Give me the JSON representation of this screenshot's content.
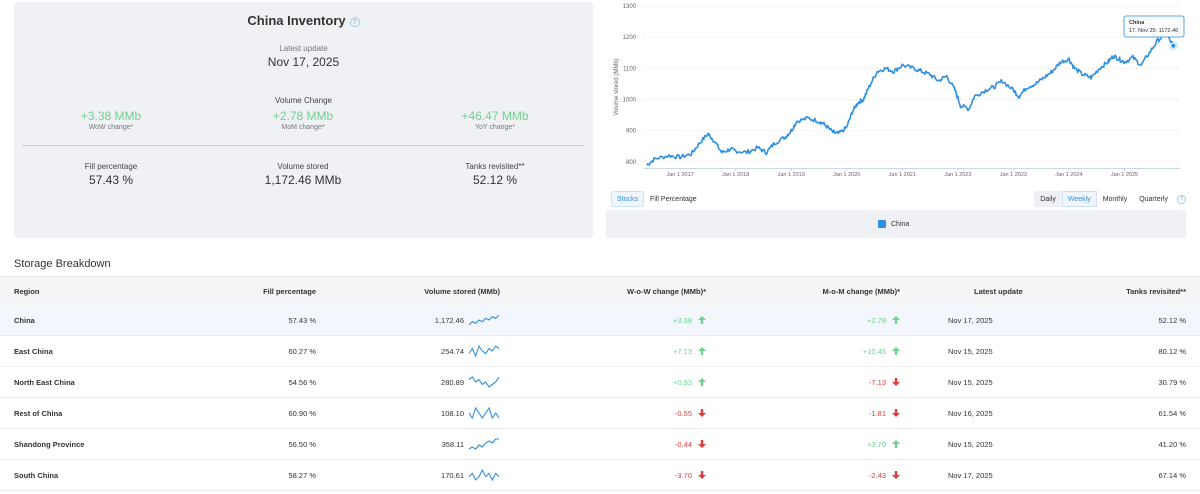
{
  "summary": {
    "title": "China Inventory",
    "help": "?",
    "latest_update_label": "Latest update",
    "latest_update_value": "Nov 17, 2025",
    "volume_change_label": "Volume Change",
    "wow_value": "+3.38 MMb",
    "wow_label": "WoW change*",
    "mom_value": "+2.78 MMb",
    "mom_label": "MoM change*",
    "yoy_value": "+46.47 MMb",
    "yoy_label": "YoY change*",
    "fill_label": "Fill percentage",
    "fill_value": "57.43 %",
    "volume_label": "Volume stored",
    "volume_value": "1,172.46 MMb",
    "tanks_label": "Tanks revisited**",
    "tanks_value": "52.12 %"
  },
  "chart_data": {
    "type": "line",
    "ylabel": "Volume stored (MMb)",
    "ylim": [
      780,
      1300
    ],
    "y_ticks": [
      "800",
      "900",
      "1000",
      "1100",
      "1200",
      "1300"
    ],
    "x_ticks": [
      "Jan 1 2017",
      "Jan 1 2018",
      "Jan 1 2019",
      "Jan 1 2020",
      "Jan 1 2021",
      "Jan 1 2022",
      "Jan 1 2023",
      "Jan 1 2024",
      "Jan 1 2025"
    ],
    "x_tick_years": [
      2017,
      2018,
      2019,
      2020,
      2021,
      2022,
      2023,
      2024,
      2025
    ],
    "xlim": [
      2016.35,
      2026.0
    ],
    "series": [
      {
        "name": "China",
        "x": [
          2016.4,
          2016.55,
          2016.8,
          2017.0,
          2017.2,
          2017.35,
          2017.5,
          2017.6,
          2017.75,
          2017.9,
          2018.0,
          2018.2,
          2018.4,
          2018.55,
          2018.7,
          2018.9,
          2019.0,
          2019.1,
          2019.3,
          2019.5,
          2019.6,
          2019.75,
          2019.85,
          2020.0,
          2020.1,
          2020.2,
          2020.3,
          2020.4,
          2020.55,
          2020.7,
          2020.85,
          2021.0,
          2021.2,
          2021.35,
          2021.5,
          2021.65,
          2021.8,
          2021.95,
          2022.05,
          2022.2,
          2022.3,
          2022.5,
          2022.65,
          2022.8,
          2023.0,
          2023.1,
          2023.25,
          2023.4,
          2023.55,
          2023.7,
          2023.85,
          2024.0,
          2024.1,
          2024.25,
          2024.4,
          2024.55,
          2024.7,
          2024.8,
          2024.9,
          2025.0,
          2025.15,
          2025.3,
          2025.45,
          2025.6,
          2025.75,
          2025.88
        ],
        "values": [
          790,
          810,
          820,
          815,
          825,
          860,
          890,
          870,
          830,
          840,
          835,
          830,
          845,
          830,
          860,
          880,
          900,
          930,
          940,
          930,
          920,
          895,
          890,
          910,
          960,
          990,
          1000,
          1040,
          1090,
          1100,
          1090,
          1110,
          1100,
          1090,
          1080,
          1060,
          1075,
          1030,
          980,
          970,
          1010,
          1030,
          1040,
          1060,
          1030,
          1010,
          1040,
          1050,
          1070,
          1090,
          1120,
          1130,
          1100,
          1080,
          1070,
          1100,
          1120,
          1140,
          1130,
          1120,
          1135,
          1110,
          1150,
          1190,
          1210,
          1172.46
        ]
      }
    ],
    "tooltip": {
      "series": "China",
      "text": "17. Nov 25: 1172.46",
      "x": 2025.88,
      "y": 1172.46
    },
    "legend": [
      "China"
    ],
    "color": "#2e8fe0"
  },
  "chart_controls": {
    "tabs": [
      "Stocks",
      "Fill Percentage"
    ],
    "active_tab": "Stocks",
    "frequencies": [
      "Daily",
      "Weekly",
      "Monthly",
      "Quarterly"
    ],
    "active_frequency": "Weekly",
    "help": "?"
  },
  "storage": {
    "title": "Storage Breakdown",
    "columns": [
      "Region",
      "Fill percentage",
      "Volume stored (MMb)",
      "W-o-W change (MMb)*",
      "M-o-M change (MMb)*",
      "Latest update",
      "Tanks revisited**"
    ],
    "rows": [
      {
        "region": "China",
        "fill": "57.43 %",
        "volume": "1,172.46",
        "wow": "+3.38",
        "wow_dir": "up",
        "mom": "+2.78",
        "mom_dir": "up",
        "date": "Nov 17, 2025",
        "tanks": "52.12 %",
        "spark": [
          3,
          5,
          4,
          6,
          5,
          7,
          6,
          8,
          7,
          9
        ]
      },
      {
        "region": "East China",
        "fill": "60.27 %",
        "volume": "254.74",
        "wow": "+7.13",
        "wow_dir": "up",
        "mom": "+10.45",
        "mom_dir": "up",
        "date": "Nov 15, 2025",
        "tanks": "80.12 %",
        "spark": [
          5,
          7,
          4,
          8,
          6,
          5,
          7,
          6,
          8,
          7
        ]
      },
      {
        "region": "North East China",
        "fill": "54.56 %",
        "volume": "280.89",
        "wow": "+0.93",
        "wow_dir": "up",
        "mom": "-7.13",
        "mom_dir": "down",
        "date": "Nov 15, 2025",
        "tanks": "30.79 %",
        "spark": [
          7,
          8,
          6,
          7,
          5,
          6,
          4,
          5,
          6,
          8
        ]
      },
      {
        "region": "Rest of China",
        "fill": "60.90 %",
        "volume": "108.10",
        "wow": "-0.55",
        "wow_dir": "down",
        "mom": "-1.81",
        "mom_dir": "down",
        "date": "Nov 16, 2025",
        "tanks": "61.54 %",
        "spark": [
          6,
          5,
          7,
          6,
          5,
          6,
          7,
          5,
          6,
          5
        ]
      },
      {
        "region": "Shandong Province",
        "fill": "56.50 %",
        "volume": "358.11",
        "wow": "-0.44",
        "wow_dir": "down",
        "mom": "+3.70",
        "mom_dir": "up",
        "date": "Nov 15, 2025",
        "tanks": "41.20 %",
        "spark": [
          3,
          4,
          3,
          5,
          4,
          6,
          7,
          6,
          8,
          8
        ]
      },
      {
        "region": "South China",
        "fill": "58.27 %",
        "volume": "170.61",
        "wow": "-3.70",
        "wow_dir": "down",
        "mom": "-2.43",
        "mom_dir": "down",
        "date": "Nov 17, 2025",
        "tanks": "67.14 %",
        "spark": [
          5,
          6,
          4,
          5,
          7,
          5,
          6,
          4,
          6,
          5
        ]
      }
    ]
  },
  "colors": {
    "positive": "#6fd18d",
    "negative": "#e23b3b",
    "accent": "#2e8fe0",
    "panel": "#eff1f4"
  }
}
